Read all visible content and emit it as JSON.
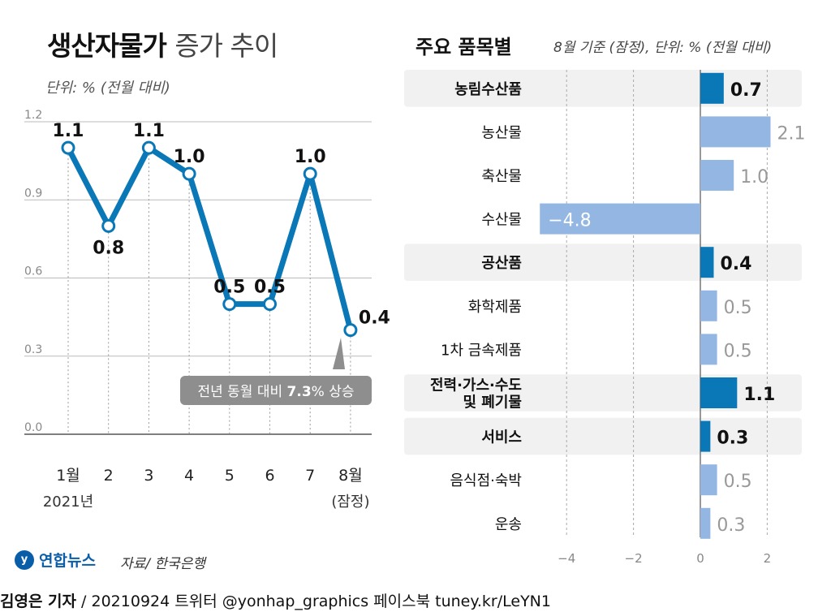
{
  "header": {
    "title_bold": "생산자물가",
    "title_rest": "증가 추이",
    "unit": "단위: % (전월 대비)"
  },
  "right_header": {
    "title": "주요 품목별",
    "note": "8월 기준 (잠정), 단위: % (전월 대비)"
  },
  "chart_data": [
    {
      "type": "line",
      "x": [
        "1월",
        "2",
        "3",
        "4",
        "5",
        "6",
        "7",
        "8월"
      ],
      "x_sublabels": [
        "2021년",
        "",
        "",
        "",
        "",
        "",
        "",
        "(잠정)"
      ],
      "values": [
        1.1,
        0.8,
        1.1,
        1.0,
        0.5,
        0.5,
        1.0,
        0.4
      ],
      "value_labels": [
        "1.1",
        "0.8",
        "1.1",
        "1.0",
        "0.5",
        "0.5",
        "1.0",
        "0.4"
      ],
      "label_pos": [
        "above",
        "below",
        "above",
        "above",
        "above",
        "above",
        "above",
        "right"
      ],
      "ylim": [
        0.0,
        1.2
      ],
      "yticks": [
        0.0,
        0.3,
        0.6,
        0.9,
        1.2
      ],
      "ytick_labels": [
        "0.0",
        "0.3",
        "0.6",
        "0.9",
        "1.2"
      ],
      "grid": true,
      "callout": {
        "prefix": "전년 동월 대비 ",
        "value": "7.3",
        "suffix": "% 상승"
      },
      "color": "#0a78b7"
    },
    {
      "type": "bar",
      "orientation": "horizontal",
      "categories": [
        "농림수산품",
        "농산물",
        "축산물",
        "수산물",
        "공산품",
        "화학제품",
        "1차 금속제품",
        "전력·가스·수도\n및 폐기물",
        "서비스",
        "음식점·숙박",
        "운송"
      ],
      "values": [
        0.7,
        2.1,
        1.0,
        -4.8,
        0.4,
        0.5,
        0.5,
        1.1,
        0.3,
        0.5,
        0.3
      ],
      "value_labels": [
        "0.7",
        "2.1",
        "1.0",
        "−4.8",
        "0.4",
        "0.5",
        "0.5",
        "1.1",
        "0.3",
        "0.5",
        "0.3"
      ],
      "is_major": [
        true,
        false,
        false,
        false,
        true,
        false,
        false,
        true,
        true,
        false,
        false
      ],
      "xlim": [
        -5,
        3
      ],
      "xticks": [
        -4,
        -2,
        0,
        2
      ],
      "xtick_labels": [
        "−4",
        "−2",
        "0",
        "2"
      ],
      "colors": {
        "major": "#0a78b7",
        "minor": "#93b7e2"
      }
    }
  ],
  "source": "자료/ 한국은행",
  "logo_text": "연합뉴스",
  "footer": {
    "reporter": "김영은 기자",
    "rest": " / 20210924  트위터 @yonhap_graphics  페이스북 tuney.kr/LeYN1"
  }
}
